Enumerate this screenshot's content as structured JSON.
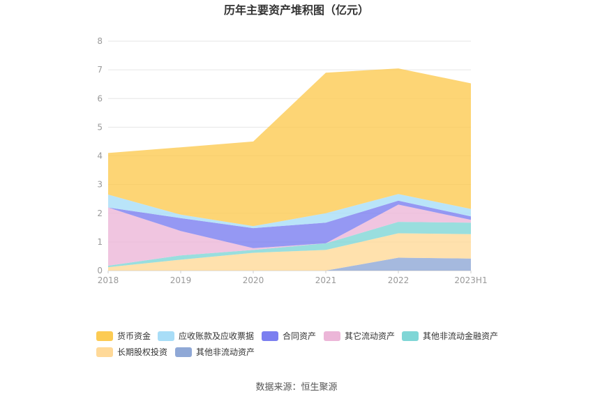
{
  "chart_data": {
    "type": "area",
    "stacked": true,
    "title": "历年主要资产堆积图（亿元）",
    "x": [
      "2018",
      "2019",
      "2020",
      "2021",
      "2022",
      "2023H1"
    ],
    "ylim": [
      0,
      8
    ],
    "yticks": [
      0,
      1,
      2,
      3,
      4,
      5,
      6,
      7,
      8
    ],
    "grid": true,
    "legend_position": "bottom",
    "series": [
      {
        "name": "其他非流动资产",
        "color": "#8FA8D6",
        "values": [
          0.0,
          0.0,
          0.0,
          0.0,
          0.45,
          0.42
        ]
      },
      {
        "name": "长期股权投资",
        "color": "#FFD998",
        "values": [
          0.12,
          0.38,
          0.62,
          0.72,
          0.85,
          0.85
        ]
      },
      {
        "name": "其他非流动金融资产",
        "color": "#7FD6D6",
        "values": [
          0.05,
          0.15,
          0.1,
          0.23,
          0.4,
          0.4
        ]
      },
      {
        "name": "其它流动资产",
        "color": "#ECB6D8",
        "values": [
          2.03,
          0.85,
          0.06,
          0.0,
          0.6,
          0.1
        ]
      },
      {
        "name": "合同资产",
        "color": "#7B7EF0",
        "values": [
          0.0,
          0.45,
          0.7,
          0.72,
          0.14,
          0.12
        ]
      },
      {
        "name": "应收账款及应收票据",
        "color": "#A8DDF7",
        "values": [
          0.45,
          0.12,
          0.07,
          0.33,
          0.23,
          0.26
        ]
      },
      {
        "name": "货币资金",
        "color": "#FCCB53",
        "values": [
          1.45,
          2.35,
          2.95,
          4.9,
          4.38,
          4.38
        ]
      }
    ],
    "legend_order": [
      "货币资金",
      "应收账款及应收票据",
      "合同资产",
      "其它流动资产",
      "其他非流动金融资产",
      "长期股权投资",
      "其他非流动资产"
    ]
  },
  "source_text": "数据来源：恒生聚源"
}
